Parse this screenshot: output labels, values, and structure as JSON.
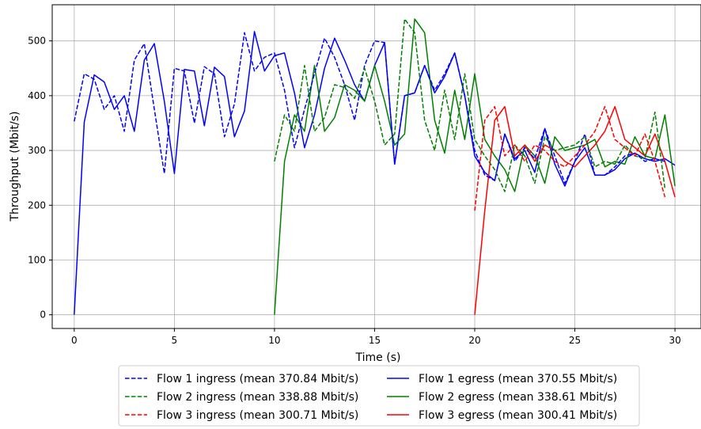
{
  "chart_data": {
    "type": "line",
    "title": "",
    "xlabel": "Time (s)",
    "ylabel": "Throughput (Mbit/s)",
    "xlim": [
      -1.1,
      31.3
    ],
    "ylim": [
      -25,
      566
    ],
    "xticks": [
      0,
      5,
      10,
      15,
      20,
      25,
      30
    ],
    "yticks": [
      0,
      100,
      200,
      300,
      400,
      500
    ],
    "grid": true,
    "legend_position": "bottom-center",
    "series": [
      {
        "name": "Flow 1 ingress (mean 370.84 Mbit/s)",
        "color": "#0000ff",
        "dash": "dashed",
        "x": [
          0,
          0.5,
          1,
          1.5,
          2,
          2.5,
          3,
          3.5,
          4,
          4.5,
          5,
          5.5,
          6,
          6.5,
          7,
          7.5,
          8,
          8.5,
          9,
          9.5,
          10,
          10.5,
          11,
          11.5,
          12,
          12.5,
          13,
          13.5,
          14,
          14.5,
          15,
          15.5,
          16,
          16.5,
          17,
          17.5,
          18,
          18.5,
          19,
          19.5,
          20,
          20.5,
          21,
          21.5,
          22,
          22.5,
          23,
          23.5,
          24,
          24.5,
          25,
          25.5,
          26,
          26.5,
          27,
          27.5,
          28,
          28.5,
          29,
          29.5
        ],
        "values": [
          353,
          440,
          430,
          375,
          400,
          335,
          465,
          495,
          375,
          258,
          450,
          445,
          350,
          453,
          440,
          325,
          385,
          515,
          445,
          470,
          478,
          410,
          305,
          375,
          440,
          505,
          470,
          420,
          355,
          455,
          500,
          497,
          275,
          400,
          405,
          455,
          410,
          440,
          478,
          400,
          300,
          255,
          245,
          330,
          280,
          305,
          285,
          340,
          290,
          240,
          280,
          330,
          255,
          255,
          270,
          290,
          295,
          280,
          285,
          280
        ]
      },
      {
        "name": "Flow 2 ingress (mean 338.88 Mbit/s)",
        "color": "#008000",
        "dash": "dashed",
        "x": [
          10,
          10.5,
          11,
          11.5,
          12,
          12.5,
          13,
          13.5,
          14,
          14.5,
          15,
          15.5,
          16,
          16.5,
          17,
          17.5,
          18,
          18.5,
          19,
          19.5,
          20,
          20.5,
          21,
          21.5,
          22,
          22.5,
          23,
          23.5,
          24,
          24.5,
          25,
          25.5,
          26,
          26.5,
          27,
          27.5,
          28,
          28.5,
          29,
          29.5
        ],
        "values": [
          280,
          365,
          335,
          455,
          335,
          360,
          420,
          415,
          395,
          450,
          390,
          310,
          330,
          540,
          515,
          355,
          300,
          410,
          320,
          440,
          320,
          290,
          265,
          225,
          310,
          290,
          240,
          325,
          300,
          305,
          310,
          325,
          270,
          280,
          275,
          310,
          290,
          285,
          370,
          230
        ]
      },
      {
        "name": "Flow 3 ingress (mean 300.71 Mbit/s)",
        "color": "#ff0000",
        "dash": "dashed",
        "x": [
          20,
          20.5,
          21,
          21.5,
          22,
          22.5,
          23,
          23.5,
          24,
          24.5,
          25,
          25.5,
          26,
          26.5,
          27,
          27.5,
          28,
          28.5,
          29,
          29.5
        ],
        "values": [
          190,
          355,
          380,
          290,
          310,
          280,
          310,
          300,
          280,
          270,
          290,
          310,
          335,
          380,
          320,
          305,
          290,
          330,
          280,
          215
        ]
      },
      {
        "name": "Flow 1 egress (mean 370.55 Mbit/s)",
        "color": "#0000ff",
        "dash": "solid",
        "x": [
          0,
          0.5,
          1,
          1.5,
          2,
          2.5,
          3,
          3.5,
          4,
          4.5,
          5,
          5.5,
          6,
          6.5,
          7,
          7.5,
          8,
          8.5,
          9,
          9.5,
          10,
          10.5,
          11,
          11.5,
          12,
          12.5,
          13,
          13.5,
          14,
          14.5,
          15,
          15.5,
          16,
          16.5,
          17,
          17.5,
          18,
          18.5,
          19,
          19.5,
          20,
          20.5,
          21,
          21.5,
          22,
          22.5,
          23,
          23.5,
          24,
          24.5,
          25,
          25.5,
          26,
          26.5,
          27,
          27.5,
          28,
          28.5,
          29,
          29.5,
          30
        ],
        "values": [
          0,
          352,
          438,
          425,
          375,
          400,
          335,
          465,
          495,
          390,
          258,
          448,
          445,
          345,
          452,
          435,
          325,
          372,
          517,
          445,
          473,
          478,
          405,
          305,
          365,
          450,
          505,
          465,
          420,
          390,
          455,
          497,
          275,
          400,
          405,
          455,
          405,
          435,
          478,
          400,
          290,
          260,
          245,
          330,
          285,
          300,
          260,
          340,
          275,
          235,
          280,
          305,
          255,
          255,
          265,
          285,
          295,
          285,
          280,
          285,
          273
        ]
      },
      {
        "name": "Flow 2 egress (mean 338.61 Mbit/s)",
        "color": "#008000",
        "dash": "solid",
        "x": [
          10,
          10.5,
          11,
          11.5,
          12,
          12.5,
          13,
          13.5,
          14,
          14.5,
          15,
          15.5,
          16,
          16.5,
          17,
          17.5,
          18,
          18.5,
          19,
          19.5,
          20,
          20.5,
          21,
          21.5,
          22,
          22.5,
          23,
          23.5,
          24,
          24.5,
          25,
          25.5,
          26,
          26.5,
          27,
          27.5,
          28,
          28.5,
          29,
          29.5,
          30
        ],
        "values": [
          0,
          280,
          365,
          335,
          455,
          335,
          360,
          420,
          410,
          390,
          455,
          390,
          310,
          330,
          540,
          515,
          355,
          295,
          410,
          320,
          440,
          320,
          290,
          265,
          225,
          310,
          290,
          240,
          325,
          300,
          305,
          310,
          320,
          270,
          280,
          275,
          325,
          290,
          285,
          365,
          235
        ]
      },
      {
        "name": "Flow 3 egress (mean 300.41 Mbit/s)",
        "color": "#ff0000",
        "dash": "solid",
        "x": [
          20,
          20.5,
          21,
          21.5,
          22,
          22.5,
          23,
          23.5,
          24,
          24.5,
          25,
          25.5,
          26,
          26.5,
          27,
          27.5,
          28,
          28.5,
          29,
          29.5,
          30
        ],
        "values": [
          0,
          190,
          355,
          380,
          290,
          310,
          280,
          310,
          300,
          280,
          270,
          290,
          310,
          335,
          380,
          320,
          305,
          290,
          330,
          280,
          215
        ]
      }
    ]
  }
}
